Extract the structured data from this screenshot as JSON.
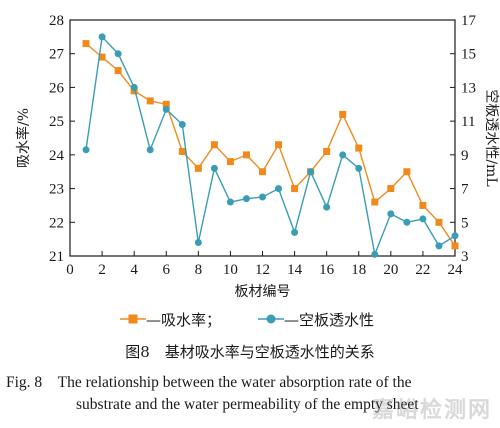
{
  "chart_data": {
    "type": "line",
    "x": [
      1,
      2,
      3,
      4,
      5,
      6,
      7,
      8,
      9,
      10,
      11,
      12,
      13,
      14,
      15,
      16,
      17,
      18,
      19,
      20,
      21,
      22,
      23,
      24
    ],
    "xlabel": "板材编号",
    "xlim": [
      0,
      24
    ],
    "xticks": [
      0,
      2,
      4,
      6,
      8,
      10,
      12,
      14,
      16,
      18,
      20,
      22,
      24
    ],
    "series": [
      {
        "name": "吸水率",
        "axis": "left",
        "color": "#f08a1c",
        "marker": "square",
        "values": [
          27.3,
          26.9,
          26.5,
          25.9,
          25.6,
          25.5,
          24.1,
          23.6,
          24.3,
          23.8,
          24.0,
          23.5,
          24.3,
          23.0,
          23.5,
          24.1,
          25.2,
          24.2,
          22.6,
          23.0,
          23.5,
          22.5,
          22.0,
          21.3
        ]
      },
      {
        "name": "空板透水性",
        "axis": "right",
        "color": "#3a9db5",
        "marker": "circle",
        "values": [
          9.3,
          16.0,
          15.0,
          13.0,
          9.3,
          11.7,
          10.8,
          3.8,
          8.2,
          6.2,
          6.4,
          6.5,
          7.0,
          4.4,
          8.0,
          5.9,
          9.0,
          8.2,
          3.1,
          5.5,
          5.0,
          5.2,
          3.6,
          4.2
        ]
      }
    ],
    "y_left": {
      "label": "吸水率/%",
      "lim": [
        21,
        28
      ],
      "ticks": [
        21,
        22,
        23,
        24,
        25,
        26,
        27,
        28
      ]
    },
    "y_right": {
      "label": "空板透水性/mL",
      "lim": [
        3,
        17
      ],
      "ticks": [
        3,
        5,
        7,
        9,
        11,
        13,
        15,
        17
      ]
    },
    "legend": "bottom"
  },
  "legend": {
    "item1_label": "—吸水率；",
    "item2_label": "—空板透水性"
  },
  "caption": {
    "cn": "图8　基材吸水率与空板透水性的关系",
    "en_line1": "Fig. 8　The relationship between the water absorption rate of the",
    "en_line2": "substrate and the water permeability of the empty sheet"
  },
  "watermark": "嘉峪检测网"
}
